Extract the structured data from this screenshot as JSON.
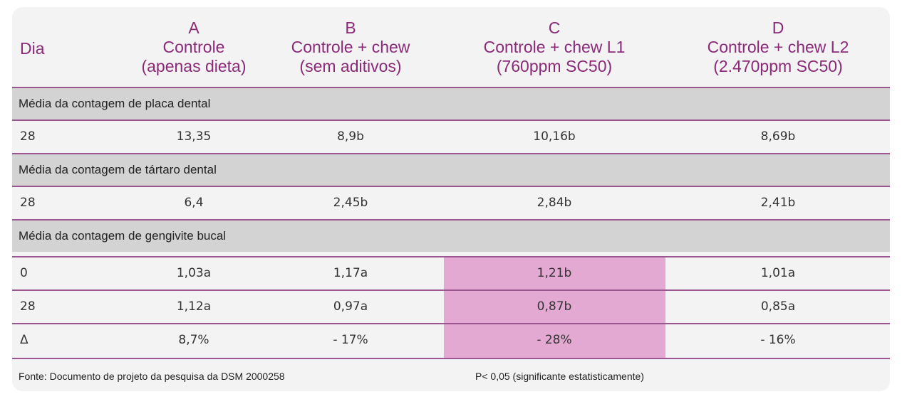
{
  "header": {
    "dia_label": "Dia",
    "columns": [
      {
        "letter": "A",
        "line1": "Controle",
        "line2": "(apenas dieta)"
      },
      {
        "letter": "B",
        "line1": "Controle + chew",
        "line2": "(sem aditivos)"
      },
      {
        "letter": "C",
        "line1": "Controle + chew L1",
        "line2": "(760ppm SC50)"
      },
      {
        "letter": "D",
        "line1": "Controle + chew L2",
        "line2": "(2.470ppm SC50)"
      }
    ]
  },
  "sections": [
    {
      "title": "Média da contagem de placa dental",
      "rows": [
        {
          "day": "28",
          "values": [
            "13,35",
            "8,9b",
            "10,16b",
            "8,69b"
          ]
        }
      ]
    },
    {
      "title": "Média da contagem de tártaro dental",
      "rows": [
        {
          "day": "28",
          "values": [
            "6,4",
            "2,45b",
            "2,84b",
            "2,41b"
          ]
        }
      ]
    },
    {
      "title": "Média da contagem de gengivite bucal",
      "rows": [
        {
          "day": "0",
          "values": [
            "1,03a",
            "1,17a",
            "1,21b",
            "1,01a"
          ]
        },
        {
          "day": "28",
          "values": [
            "1,12a",
            "0,97a",
            "0,87b",
            "0,85a"
          ]
        },
        {
          "day": "Δ",
          "values": [
            "8,7%",
            "- 17%",
            "- 28%",
            "- 16%"
          ]
        }
      ]
    }
  ],
  "footer": {
    "source": "Fonte: Documento de projeto da pesquisa da DSM 2000258",
    "note": "P< 0,05 (significante estatisticamente)"
  },
  "colors": {
    "header_text": "#8a2a78",
    "rule": "#9b5590",
    "section_bg": "#d4d3d4",
    "highlight": "#e4a9d2",
    "card_bg": "#f4f3f4"
  }
}
